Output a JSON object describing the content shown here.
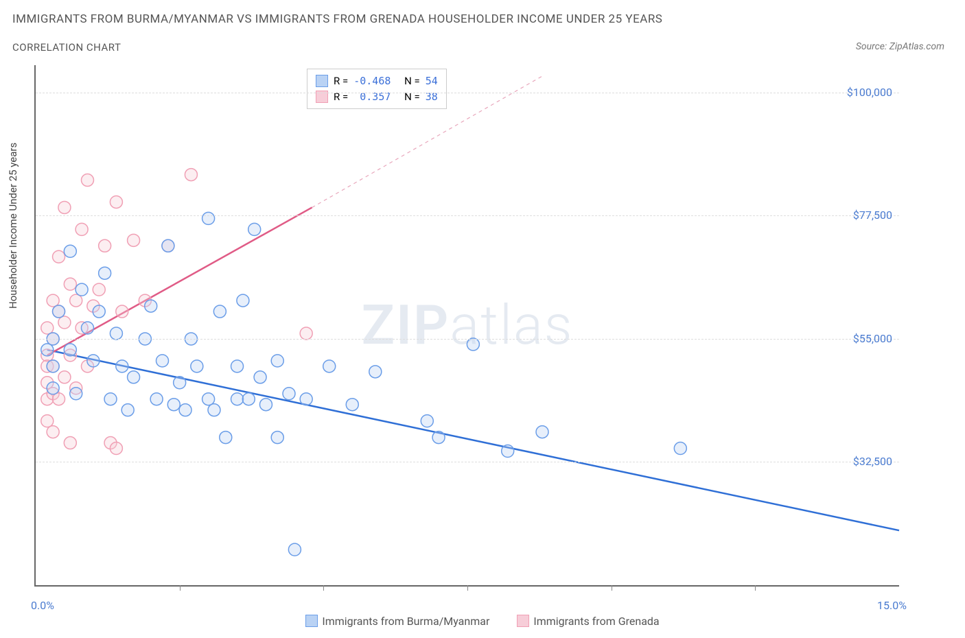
{
  "title": "IMMIGRANTS FROM BURMA/MYANMAR VS IMMIGRANTS FROM GRENADA HOUSEHOLDER INCOME UNDER 25 YEARS",
  "subtitle": "CORRELATION CHART",
  "source_label": "Source:",
  "source_name": "ZipAtlas.com",
  "ylabel": "Householder Income Under 25 years",
  "watermark_bold": "ZIP",
  "watermark_light": "atlas",
  "chart": {
    "type": "scatter",
    "xlim": [
      0,
      15
    ],
    "ylim": [
      10000,
      105000
    ],
    "x_tick_positions": [
      2.5,
      5.0,
      7.5,
      10.0,
      12.5
    ],
    "x_min_label": "0.0%",
    "x_max_label": "15.0%",
    "y_ticks": [
      {
        "value": 32500,
        "label": "$32,500"
      },
      {
        "value": 55000,
        "label": "$55,000"
      },
      {
        "value": 77500,
        "label": "$77,500"
      },
      {
        "value": 100000,
        "label": "$100,000"
      }
    ],
    "background_color": "#ffffff",
    "grid_color": "#dddddd",
    "axis_color": "#666666",
    "tick_label_color": "#4a7bd0",
    "marker_radius": 9,
    "marker_stroke_width": 1.5,
    "marker_fill_opacity": 0.35,
    "series": [
      {
        "key": "burma",
        "label": "Immigrants from Burma/Myanmar",
        "stroke": "#6a9de8",
        "fill": "#b9d2f4",
        "R": -0.468,
        "N": 54,
        "trend": {
          "x1": 0.2,
          "y1": 53000,
          "x2": 15.0,
          "y2": 20000,
          "dash": null,
          "width": 2.5,
          "color": "#2f6fd6"
        },
        "points": [
          [
            0.2,
            53000
          ],
          [
            0.3,
            50000
          ],
          [
            0.3,
            55000
          ],
          [
            0.3,
            46000
          ],
          [
            0.4,
            60000
          ],
          [
            0.6,
            71000
          ],
          [
            0.6,
            53000
          ],
          [
            0.7,
            45000
          ],
          [
            0.8,
            64000
          ],
          [
            0.9,
            57000
          ],
          [
            1.0,
            51000
          ],
          [
            1.1,
            60000
          ],
          [
            1.2,
            67000
          ],
          [
            1.3,
            44000
          ],
          [
            1.4,
            56000
          ],
          [
            1.5,
            50000
          ],
          [
            1.6,
            42000
          ],
          [
            1.7,
            48000
          ],
          [
            1.9,
            55000
          ],
          [
            2.0,
            61000
          ],
          [
            2.1,
            44000
          ],
          [
            2.2,
            51000
          ],
          [
            2.3,
            72000
          ],
          [
            2.4,
            43000
          ],
          [
            2.5,
            47000
          ],
          [
            2.6,
            42000
          ],
          [
            2.7,
            55000
          ],
          [
            2.8,
            50000
          ],
          [
            3.0,
            77000
          ],
          [
            3.0,
            44000
          ],
          [
            3.1,
            42000
          ],
          [
            3.2,
            60000
          ],
          [
            3.3,
            37000
          ],
          [
            3.5,
            44000
          ],
          [
            3.5,
            50000
          ],
          [
            3.6,
            62000
          ],
          [
            3.7,
            44000
          ],
          [
            3.8,
            75000
          ],
          [
            3.9,
            48000
          ],
          [
            4.0,
            43000
          ],
          [
            4.2,
            37000
          ],
          [
            4.2,
            51000
          ],
          [
            4.4,
            45000
          ],
          [
            4.5,
            16500
          ],
          [
            4.7,
            44000
          ],
          [
            5.1,
            50000
          ],
          [
            5.5,
            43000
          ],
          [
            5.9,
            49000
          ],
          [
            6.8,
            40000
          ],
          [
            7.0,
            37000
          ],
          [
            7.6,
            54000
          ],
          [
            8.2,
            34500
          ],
          [
            11.2,
            35000
          ],
          [
            8.8,
            38000
          ]
        ]
      },
      {
        "key": "grenada",
        "label": "Immigrants from Grenada",
        "stroke": "#f09fb4",
        "fill": "#f7cdd8",
        "R": 0.357,
        "N": 38,
        "trend": {
          "x1": 0.2,
          "y1": 52000,
          "x2": 4.8,
          "y2": 79000,
          "dash": null,
          "width": 2.5,
          "color": "#e05b86"
        },
        "trend_ext": {
          "x1": 4.8,
          "y1": 79000,
          "x2": 8.8,
          "y2": 103000,
          "dash": "5,5",
          "width": 1.2,
          "color": "#e8a6bb"
        },
        "points": [
          [
            0.2,
            52000
          ],
          [
            0.2,
            57000
          ],
          [
            0.2,
            50000
          ],
          [
            0.2,
            47000
          ],
          [
            0.2,
            44000
          ],
          [
            0.2,
            40000
          ],
          [
            0.3,
            62000
          ],
          [
            0.3,
            55000
          ],
          [
            0.3,
            50000
          ],
          [
            0.3,
            45000
          ],
          [
            0.3,
            38000
          ],
          [
            0.4,
            70000
          ],
          [
            0.4,
            60000
          ],
          [
            0.4,
            44000
          ],
          [
            0.5,
            79000
          ],
          [
            0.5,
            58000
          ],
          [
            0.5,
            48000
          ],
          [
            0.6,
            65000
          ],
          [
            0.6,
            52000
          ],
          [
            0.7,
            62000
          ],
          [
            0.7,
            46000
          ],
          [
            0.8,
            75000
          ],
          [
            0.8,
            57000
          ],
          [
            0.9,
            84000
          ],
          [
            0.9,
            50000
          ],
          [
            1.0,
            61000
          ],
          [
            1.1,
            64000
          ],
          [
            1.2,
            72000
          ],
          [
            1.3,
            36000
          ],
          [
            1.4,
            80000
          ],
          [
            1.5,
            60000
          ],
          [
            1.7,
            73000
          ],
          [
            1.9,
            62000
          ],
          [
            2.3,
            72000
          ],
          [
            2.7,
            85000
          ],
          [
            1.4,
            35000
          ],
          [
            0.6,
            36000
          ],
          [
            4.7,
            56000
          ]
        ]
      }
    ],
    "corr_box": {
      "R_label": "R =",
      "N_label": "N ="
    },
    "legend_bottom": true
  }
}
